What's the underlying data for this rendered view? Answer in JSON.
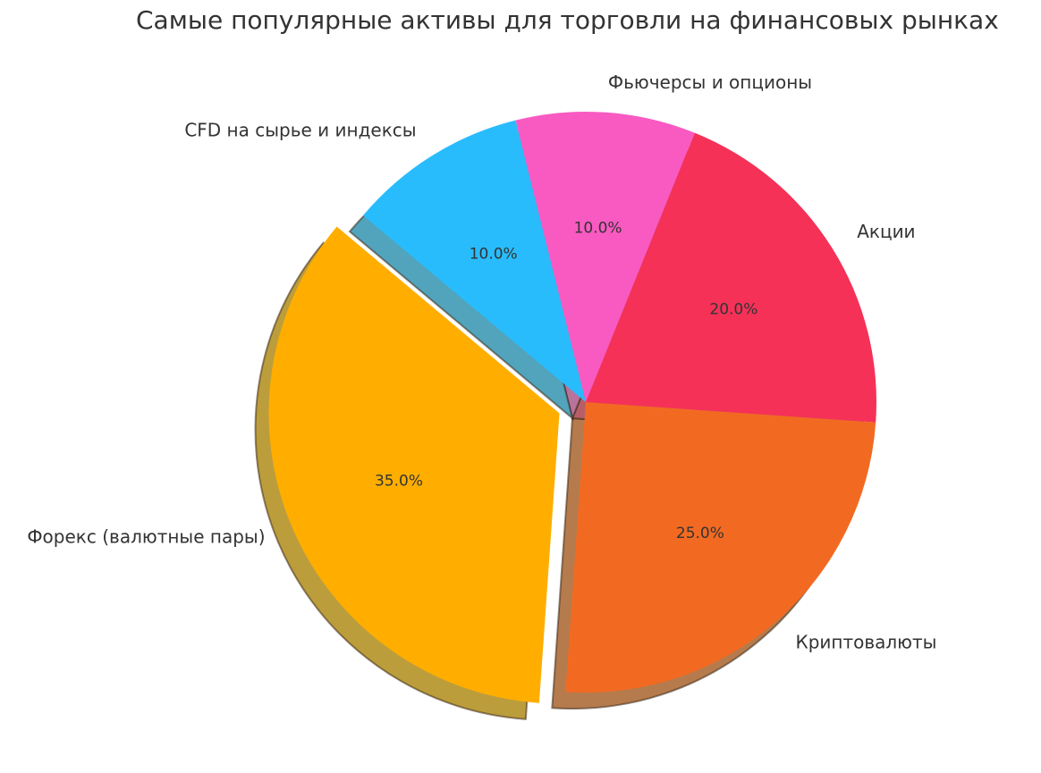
{
  "chart_data": {
    "type": "pie",
    "title": "Самые популярные активы для торговли на финансовых рынках",
    "categories": [
      "Форекс (валютные пары)",
      "Криптовалюты",
      "Акции",
      "Фьючерсы и опционы",
      "CFD на сырье и индексы"
    ],
    "values": [
      35.0,
      25.0,
      20.0,
      10.0,
      10.0
    ],
    "percent_labels": [
      "35.0%",
      "25.0%",
      "20.0%",
      "10.0%",
      "10.0%"
    ],
    "colors": [
      "#FFAE00",
      "#F26A22",
      "#F53158",
      "#F85AC2",
      "#29BCFD"
    ],
    "exploded": [
      "Форекс (валютные пары)"
    ],
    "shadow": true,
    "start_angle_deg": 140,
    "direction": "counterclockwise"
  }
}
